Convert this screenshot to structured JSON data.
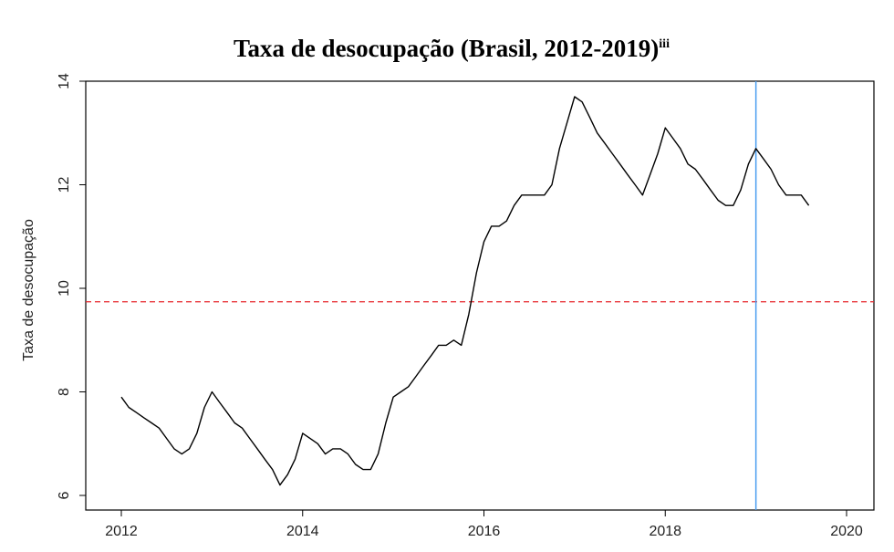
{
  "chart_data": {
    "type": "line",
    "title": "Taxa de desocupação (Brasil, 2012-2019)",
    "title_sup": "iii",
    "xlabel": "",
    "ylabel": "Taxa de desocupação",
    "xlim": [
      2011.96,
      2020.16
    ],
    "ylim": [
      5.9,
      14.0
    ],
    "xticks": [
      2012,
      2014,
      2016,
      2018,
      2020
    ],
    "yticks": [
      6,
      8,
      10,
      12,
      14
    ],
    "grid": false,
    "legend": "none",
    "reference_lines": [
      {
        "orientation": "horizontal",
        "value": 9.74,
        "style": "dashed",
        "color": "#e8262b"
      },
      {
        "orientation": "vertical",
        "value": 2019.0,
        "style": "solid",
        "color": "#4a9eef"
      }
    ],
    "series": [
      {
        "color": "#000000",
        "x": [
          2012.0,
          2012.083,
          2012.167,
          2012.25,
          2012.333,
          2012.417,
          2012.5,
          2012.583,
          2012.667,
          2012.75,
          2012.833,
          2012.917,
          2013.0,
          2013.083,
          2013.167,
          2013.25,
          2013.333,
          2013.417,
          2013.5,
          2013.583,
          2013.667,
          2013.75,
          2013.833,
          2013.917,
          2014.0,
          2014.083,
          2014.167,
          2014.25,
          2014.333,
          2014.417,
          2014.5,
          2014.583,
          2014.667,
          2014.75,
          2014.833,
          2014.917,
          2015.0,
          2015.083,
          2015.167,
          2015.25,
          2015.333,
          2015.417,
          2015.5,
          2015.583,
          2015.667,
          2015.75,
          2015.833,
          2015.917,
          2016.0,
          2016.083,
          2016.167,
          2016.25,
          2016.333,
          2016.417,
          2016.5,
          2016.583,
          2016.667,
          2016.75,
          2016.833,
          2016.917,
          2017.0,
          2017.083,
          2017.167,
          2017.25,
          2017.333,
          2017.417,
          2017.5,
          2017.583,
          2017.667,
          2017.75,
          2017.833,
          2017.917,
          2018.0,
          2018.083,
          2018.167,
          2018.25,
          2018.333,
          2018.417,
          2018.5,
          2018.583,
          2018.667,
          2018.75,
          2018.833,
          2018.917,
          2019.0,
          2019.083,
          2019.167,
          2019.25,
          2019.333,
          2019.417,
          2019.5,
          2019.583
        ],
        "y": [
          7.9,
          7.7,
          7.6,
          7.5,
          7.4,
          7.3,
          7.1,
          6.9,
          6.8,
          6.9,
          7.2,
          7.7,
          8.0,
          7.8,
          7.6,
          7.4,
          7.3,
          7.1,
          6.9,
          6.7,
          6.5,
          6.2,
          6.4,
          6.7,
          7.2,
          7.1,
          7.0,
          6.8,
          6.9,
          6.9,
          6.8,
          6.6,
          6.5,
          6.5,
          6.8,
          7.4,
          7.9,
          8.0,
          8.1,
          8.3,
          8.5,
          8.7,
          8.9,
          8.9,
          9.0,
          8.9,
          9.5,
          10.3,
          10.9,
          11.2,
          11.2,
          11.3,
          11.6,
          11.8,
          11.8,
          11.8,
          11.8,
          12.0,
          12.7,
          13.2,
          13.7,
          13.6,
          13.3,
          13.0,
          12.8,
          12.6,
          12.4,
          12.2,
          12.0,
          11.8,
          12.2,
          12.6,
          13.1,
          12.9,
          12.7,
          12.4,
          12.3,
          12.1,
          11.9,
          11.7,
          11.6,
          11.6,
          11.9,
          12.4,
          12.7,
          12.5,
          12.3,
          12.0,
          11.8,
          11.8,
          11.8,
          11.6
        ]
      }
    ]
  }
}
